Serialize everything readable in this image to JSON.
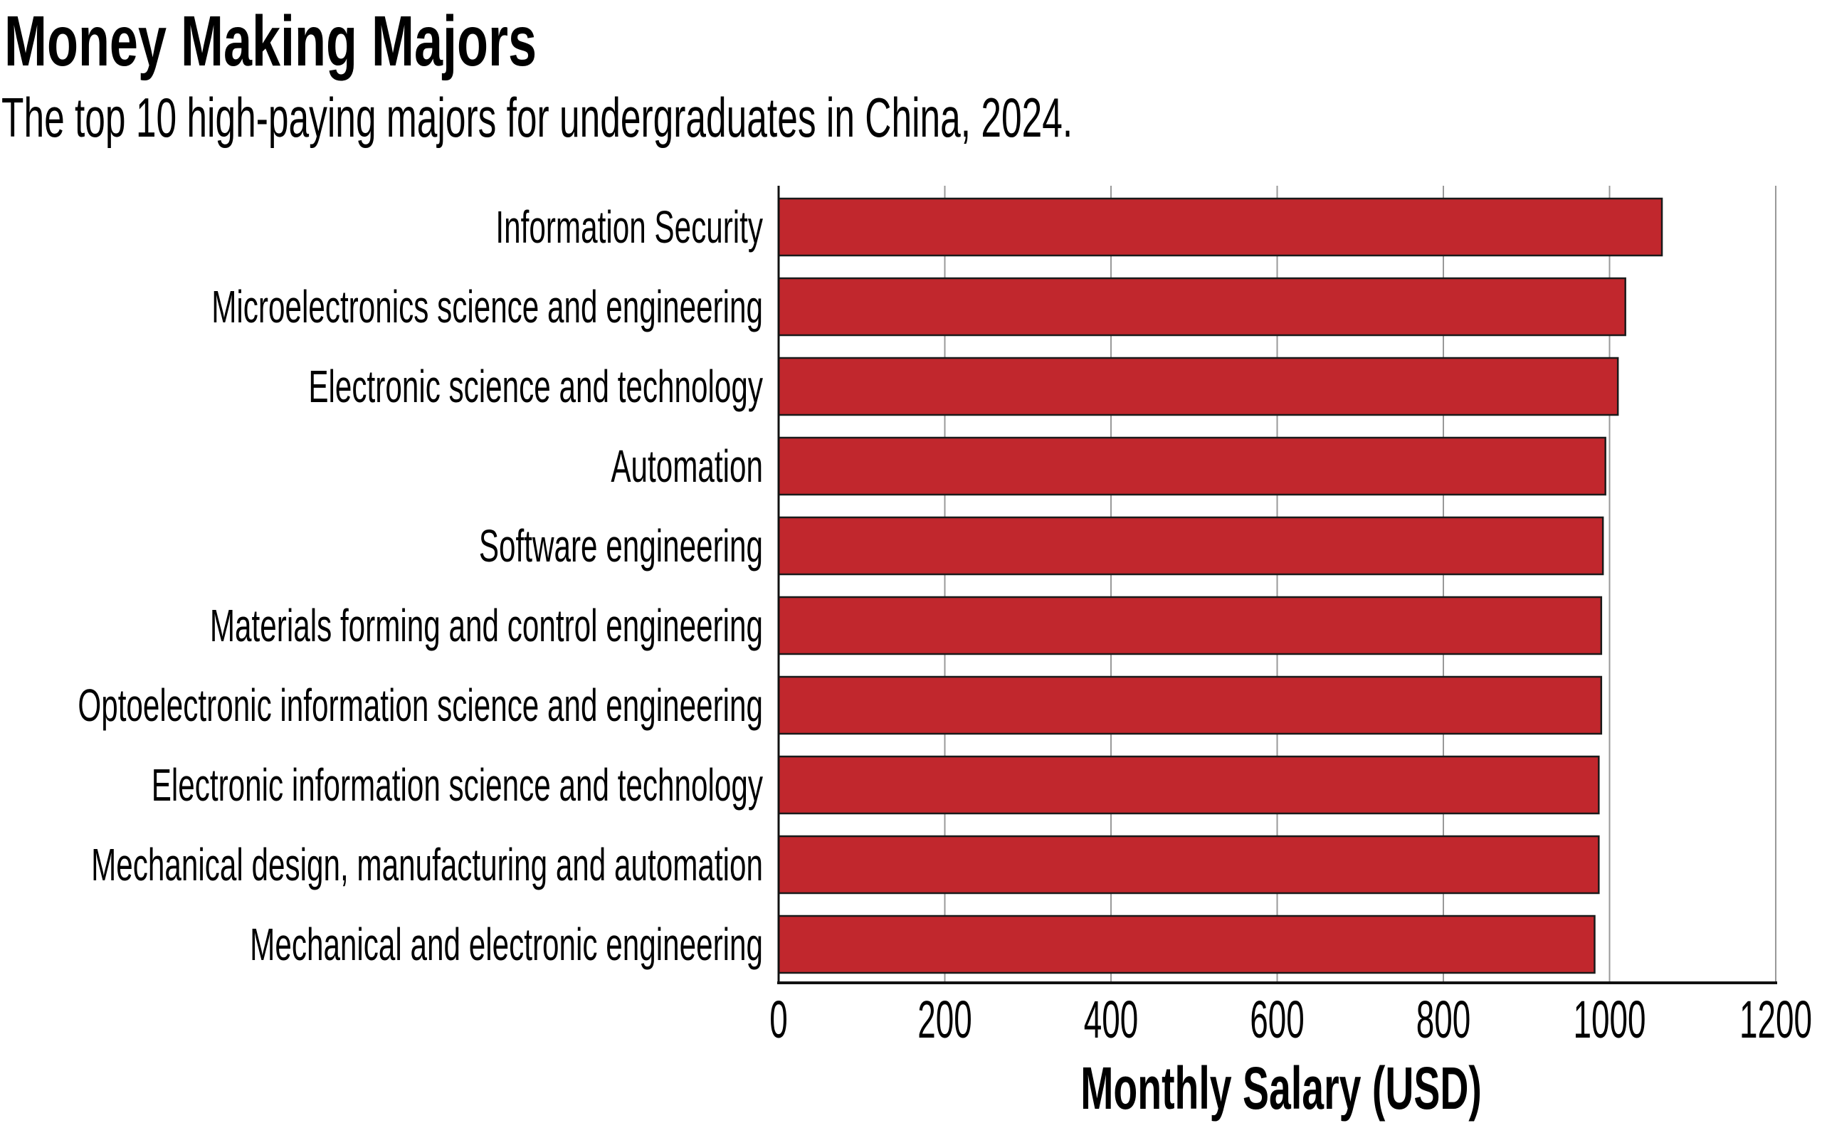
{
  "chart_data": {
    "type": "bar",
    "orientation": "horizontal",
    "title": "Money Making Majors",
    "subtitle": "The top 10 high-paying majors for undergraduates in China, 2024.",
    "xlabel": "Monthly Salary (USD)",
    "ylabel": "",
    "categories": [
      "Information Security",
      "Microelectronics science and engineering",
      "Electronic science and technology",
      "Automation",
      "Software engineering",
      "Materials forming and control engineering",
      "Optoelectronic information science and engineering",
      "Electronic information science and technology",
      "Mechanical design, manufacturing and automation",
      "Mechanical and electronic engineering"
    ],
    "values": [
      1063,
      1019,
      1010,
      995,
      992,
      990,
      990,
      987,
      987,
      982
    ],
    "xlim": [
      0,
      1200
    ],
    "xticks": [
      "0",
      "200",
      "400",
      "600",
      "800",
      "1000",
      "1200"
    ],
    "grid": "vertical",
    "legend": "none",
    "colors": {
      "bar": "#c1272d",
      "bar_edge": "#1a1a1a",
      "grid": "#999999"
    }
  }
}
